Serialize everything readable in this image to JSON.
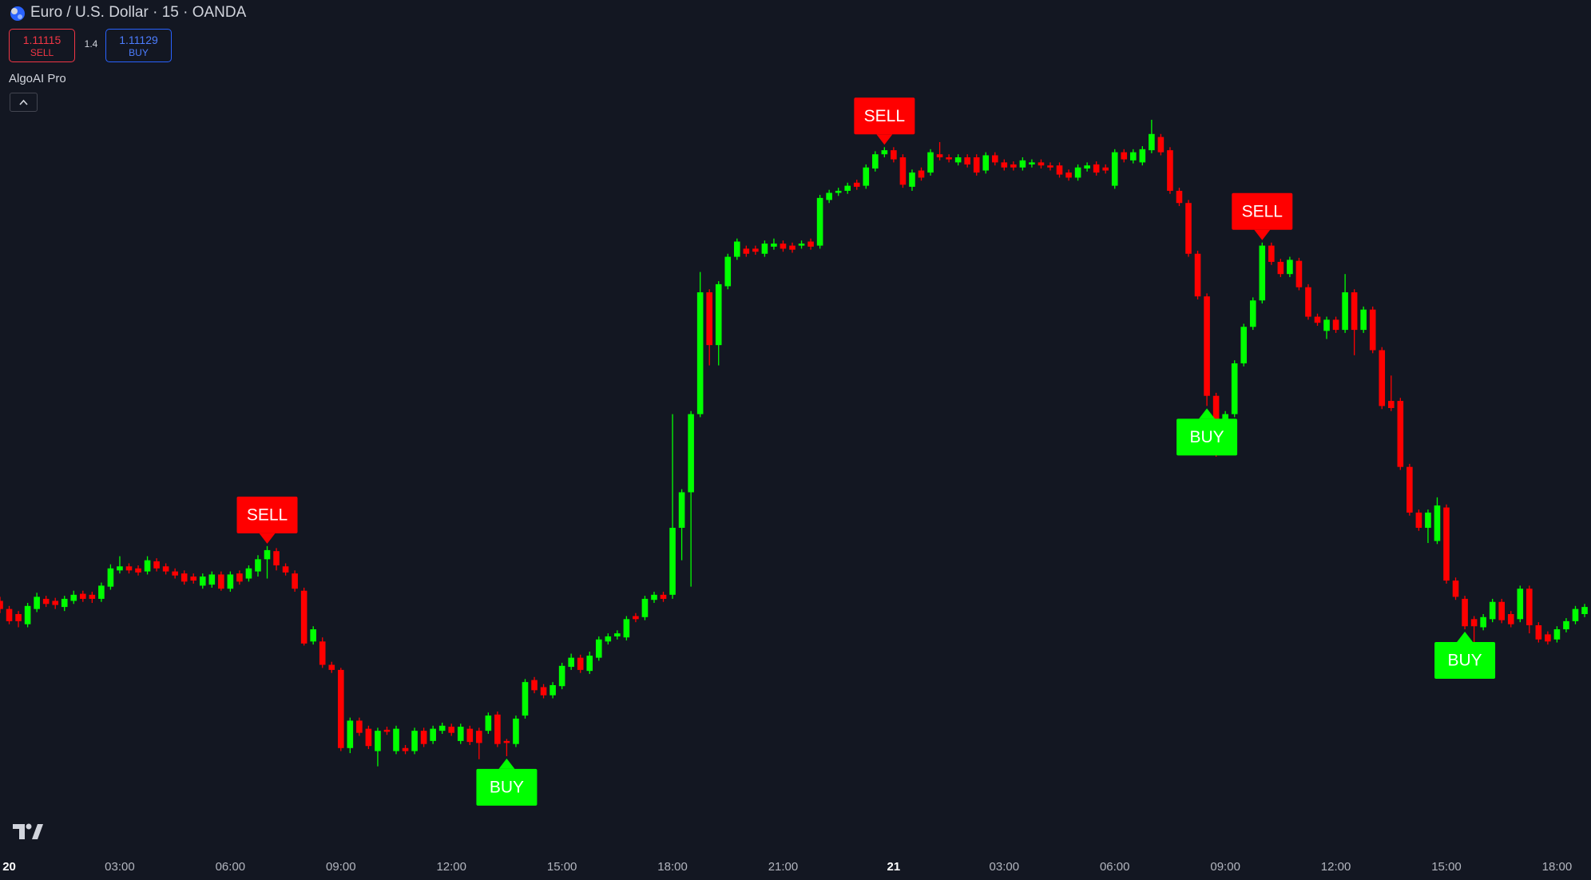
{
  "header": {
    "symbol": "Euro / U.S. Dollar · 15 · OANDA",
    "sell_price": "1.11115",
    "sell_label": "SELL",
    "spread": "1.4",
    "buy_price": "1.11129",
    "buy_label": "BUY",
    "indicator": "AlgoAI Pro"
  },
  "chart_data": {
    "type": "candlestick",
    "up_color": "#00ff00",
    "down_color": "#ff0000",
    "signal_styles": {
      "SELL": {
        "color": "#ff0000",
        "place": "above"
      },
      "BUY": {
        "color": "#00ff00",
        "place": "below"
      }
    },
    "ylim": [
      1.10933,
      1.118
    ],
    "categories": [
      null,
      "20",
      null,
      null,
      null,
      null,
      null,
      null,
      null,
      null,
      null,
      null,
      null,
      "03:00",
      null,
      null,
      null,
      null,
      null,
      null,
      null,
      null,
      null,
      null,
      null,
      "06:00",
      null,
      null,
      null,
      null,
      null,
      null,
      null,
      null,
      null,
      null,
      null,
      "09:00",
      null,
      null,
      null,
      null,
      null,
      null,
      null,
      null,
      null,
      null,
      null,
      "12:00",
      null,
      null,
      null,
      null,
      null,
      null,
      null,
      null,
      null,
      null,
      null,
      "15:00",
      null,
      null,
      null,
      null,
      null,
      null,
      null,
      null,
      null,
      null,
      null,
      "18:00",
      null,
      null,
      null,
      null,
      null,
      null,
      null,
      null,
      null,
      null,
      null,
      "21:00",
      null,
      null,
      null,
      null,
      null,
      null,
      null,
      null,
      null,
      null,
      null,
      "21",
      null,
      null,
      null,
      null,
      null,
      null,
      null,
      null,
      null,
      null,
      null,
      "03:00",
      null,
      null,
      null,
      null,
      null,
      null,
      null,
      null,
      null,
      null,
      null,
      "06:00",
      null,
      null,
      null,
      null,
      null,
      null,
      null,
      null,
      null,
      null,
      null,
      "09:00",
      null,
      null,
      null,
      null,
      null,
      null,
      null,
      null,
      null,
      null,
      null,
      "12:00",
      null,
      null,
      null,
      null,
      null,
      null,
      null,
      null,
      null,
      null,
      null,
      "15:00",
      null,
      null,
      null,
      null,
      null,
      null,
      null,
      null,
      null,
      null,
      null,
      "18:00",
      null,
      null,
      null
    ],
    "signals": [
      null,
      null,
      null,
      null,
      null,
      null,
      null,
      null,
      null,
      null,
      null,
      null,
      null,
      null,
      null,
      null,
      null,
      null,
      null,
      null,
      null,
      null,
      null,
      null,
      null,
      null,
      null,
      null,
      null,
      "SELL",
      null,
      null,
      null,
      null,
      null,
      null,
      null,
      null,
      null,
      null,
      null,
      null,
      null,
      null,
      null,
      null,
      null,
      null,
      null,
      null,
      null,
      null,
      null,
      null,
      null,
      "BUY",
      null,
      null,
      null,
      null,
      null,
      null,
      null,
      null,
      null,
      null,
      null,
      null,
      null,
      null,
      null,
      null,
      null,
      null,
      null,
      null,
      null,
      null,
      null,
      null,
      null,
      null,
      null,
      null,
      null,
      null,
      null,
      null,
      null,
      null,
      null,
      null,
      null,
      null,
      null,
      null,
      "SELL",
      null,
      null,
      null,
      null,
      null,
      null,
      null,
      null,
      null,
      null,
      null,
      null,
      null,
      null,
      null,
      null,
      null,
      null,
      null,
      null,
      null,
      null,
      null,
      null,
      null,
      null,
      null,
      null,
      null,
      null,
      null,
      null,
      null,
      null,
      "BUY",
      null,
      null,
      null,
      null,
      null,
      "SELL",
      null,
      null,
      null,
      null,
      null,
      null,
      null,
      null,
      null,
      null,
      null,
      null,
      null,
      null,
      null,
      null,
      null,
      null,
      null,
      null,
      null,
      "BUY",
      null,
      null,
      null,
      null,
      null,
      null,
      null,
      null,
      null,
      null,
      null,
      null
    ],
    "open": [
      1.11208,
      1.112,
      1.11195,
      1.11185,
      1.112,
      1.1121,
      1.11208,
      1.11202,
      1.11208,
      1.11215,
      1.11214,
      1.1121,
      1.11222,
      1.11238,
      1.11242,
      1.1124,
      1.11237,
      1.11247,
      1.11242,
      1.11237,
      1.11235,
      1.11232,
      1.11223,
      1.11224,
      1.11234,
      1.1122,
      1.11235,
      1.1123,
      1.11237,
      1.11249,
      1.11257,
      1.11242,
      1.11235,
      1.11218,
      1.11168,
      1.11168,
      1.11145,
      1.1114,
      1.11063,
      1.1109,
      1.11082,
      1.1106,
      1.11081,
      1.1106,
      1.11063,
      1.1106,
      1.1108,
      1.1107,
      1.1108,
      1.11084,
      1.1107,
      1.11082,
      1.1108,
      1.1108,
      1.11096,
      1.1107,
      1.11067,
      1.11095,
      1.1113,
      1.11123,
      1.11115,
      1.11124,
      1.11143,
      1.11152,
      1.11139,
      1.11152,
      1.11168,
      1.11173,
      1.11172,
      1.11193,
      1.11192,
      1.11209,
      1.11214,
      1.11214,
      1.1128,
      1.11315,
      1.11392,
      1.11512,
      1.1146,
      1.11518,
      1.11547,
      1.11555,
      1.11555,
      1.1155,
      1.11557,
      1.1156,
      1.11558,
      1.11558,
      1.11562,
      1.11558,
      1.11603,
      1.1161,
      1.11612,
      1.1162,
      1.11617,
      1.11634,
      1.11648,
      1.11652,
      1.11645,
      1.11616,
      1.11632,
      1.1163,
      1.11648,
      1.11645,
      1.1164,
      1.11645,
      1.11645,
      1.11632,
      1.11647,
      1.1164,
      1.11638,
      1.11635,
      1.11638,
      1.1164,
      1.11637,
      1.11637,
      1.1163,
      1.11625,
      1.11634,
      1.11638,
      1.11635,
      1.11617,
      1.1165,
      1.11642,
      1.1164,
      1.11652,
      1.11665,
      1.11652,
      1.11612,
      1.116,
      1.1155,
      1.11508,
      1.1141,
      1.11378,
      1.11392,
      1.11442,
      1.11478,
      1.11504,
      1.11558,
      1.11542,
      1.1153,
      1.11543,
      1.11517,
      1.11488,
      1.11474,
      1.11485,
      1.11475,
      1.11512,
      1.11475,
      1.11495,
      1.11455,
      1.11405,
      1.11405,
      1.1134,
      1.11295,
      1.1128,
      1.11267,
      1.113,
      1.11228,
      1.1121,
      1.1119,
      1.11182,
      1.1119,
      1.11207,
      1.11195,
      1.1119,
      1.1122,
      1.11184,
      1.11175,
      1.1117,
      1.1118,
      1.11188,
      1.11195
    ],
    "high": [
      1.11212,
      1.11203,
      1.11198,
      1.11206,
      1.11216,
      1.11213,
      1.11211,
      1.11213,
      1.11218,
      1.11218,
      1.11217,
      1.11226,
      1.11244,
      1.11252,
      1.11245,
      1.11243,
      1.11252,
      1.1125,
      1.11245,
      1.1124,
      1.11238,
      1.11235,
      1.11235,
      1.11237,
      1.11237,
      1.11237,
      1.11238,
      1.11243,
      1.11253,
      1.11262,
      1.1126,
      1.11245,
      1.11238,
      1.11221,
      1.11183,
      1.11172,
      1.11148,
      1.11142,
      1.11093,
      1.11093,
      1.11085,
      1.11083,
      1.11084,
      1.11085,
      1.11066,
      1.11083,
      1.11083,
      1.11085,
      1.11088,
      1.11087,
      1.11087,
      1.11085,
      1.11083,
      1.11098,
      1.11099,
      1.11072,
      1.11095,
      1.11131,
      1.11133,
      1.11126,
      1.11128,
      1.11147,
      1.11156,
      1.11155,
      1.11158,
      1.11173,
      1.11176,
      1.11179,
      1.11193,
      1.11196,
      1.11213,
      1.11217,
      1.11217,
      1.11392,
      1.11318,
      1.11395,
      1.11532,
      1.11515,
      1.11523,
      1.1155,
      1.11565,
      1.11558,
      1.11558,
      1.11563,
      1.11565,
      1.11563,
      1.11561,
      1.11563,
      1.11565,
      1.11608,
      1.11613,
      1.11615,
      1.1162,
      1.11623,
      1.11638,
      1.11651,
      1.11655,
      1.11655,
      1.11648,
      1.11633,
      1.11635,
      1.11653,
      1.1166,
      1.11648,
      1.11648,
      1.11648,
      1.11648,
      1.1165,
      1.1165,
      1.11643,
      1.11641,
      1.11645,
      1.11643,
      1.11643,
      1.1164,
      1.1164,
      1.11633,
      1.11638,
      1.1164,
      1.11641,
      1.11638,
      1.11653,
      1.11653,
      1.11653,
      1.11656,
      1.11682,
      1.11668,
      1.11655,
      1.11615,
      1.11603,
      1.11553,
      1.11511,
      1.11413,
      1.11395,
      1.11445,
      1.11481,
      1.11507,
      1.11561,
      1.11561,
      1.11545,
      1.11547,
      1.11546,
      1.1152,
      1.11491,
      1.11488,
      1.11488,
      1.1153,
      1.11515,
      1.11498,
      1.11498,
      1.11458,
      1.1143,
      1.11408,
      1.11343,
      1.11298,
      1.11298,
      1.1131,
      1.11303,
      1.11231,
      1.11213,
      1.11193,
      1.11195,
      1.1121,
      1.1121,
      1.11198,
      1.11223,
      1.11223,
      1.11187,
      1.11178,
      1.11183,
      1.11191,
      1.11203,
      1.11205
    ],
    "low": [
      1.11196,
      1.11185,
      1.11182,
      1.11182,
      1.11197,
      1.11202,
      1.112,
      1.11198,
      1.11205,
      1.11207,
      1.11206,
      1.11207,
      1.11219,
      1.11235,
      1.11235,
      1.11233,
      1.11234,
      1.11237,
      1.11234,
      1.1123,
      1.11224,
      1.11225,
      1.1122,
      1.11221,
      1.11218,
      1.11217,
      1.11224,
      1.11227,
      1.11232,
      1.1123,
      1.11238,
      1.11233,
      1.11217,
      1.11164,
      1.11165,
      1.11142,
      1.11137,
      1.1106,
      1.11058,
      1.11075,
      1.11062,
      1.11045,
      1.11076,
      1.11057,
      1.11057,
      1.11057,
      1.11064,
      1.11067,
      1.11077,
      1.11075,
      1.11067,
      1.11066,
      1.11052,
      1.11077,
      1.11064,
      1.11055,
      1.11064,
      1.11092,
      1.11117,
      1.11112,
      1.11112,
      1.11121,
      1.1114,
      1.11137,
      1.11136,
      1.11149,
      1.11165,
      1.1117,
      1.11169,
      1.11187,
      1.11189,
      1.11206,
      1.11207,
      1.1121,
      1.11248,
      1.11222,
      1.11389,
      1.1144,
      1.1144,
      1.11515,
      1.11544,
      1.11547,
      1.11549,
      1.11547,
      1.11554,
      1.11552,
      1.11551,
      1.11555,
      1.11554,
      1.11555,
      1.116,
      1.11607,
      1.11609,
      1.11613,
      1.11614,
      1.11631,
      1.11645,
      1.1164,
      1.11615,
      1.11612,
      1.11622,
      1.11627,
      1.11642,
      1.1164,
      1.11637,
      1.11635,
      1.11627,
      1.11629,
      1.11637,
      1.11632,
      1.11632,
      1.11632,
      1.11635,
      1.11634,
      1.11632,
      1.11625,
      1.11622,
      1.11622,
      1.11631,
      1.11627,
      1.11629,
      1.11614,
      1.1164,
      1.11639,
      1.11637,
      1.11649,
      1.11647,
      1.11609,
      1.11597,
      1.11547,
      1.11505,
      1.114,
      1.1135,
      1.11362,
      1.11389,
      1.11439,
      1.11475,
      1.11501,
      1.11539,
      1.11527,
      1.11527,
      1.11514,
      1.11485,
      1.11479,
      1.11466,
      1.11472,
      1.11472,
      1.1145,
      1.11472,
      1.11452,
      1.11397,
      1.11395,
      1.11337,
      1.11292,
      1.11277,
      1.11265,
      1.11264,
      1.11225,
      1.11209,
      1.1118,
      1.11165,
      1.11179,
      1.11187,
      1.11186,
      1.11182,
      1.11187,
      1.11176,
      1.11167,
      1.11165,
      1.11167,
      1.11177,
      1.11185,
      1.11192
    ],
    "close": [
      1.112,
      1.11188,
      1.11188,
      1.11203,
      1.11212,
      1.11205,
      1.11204,
      1.1121,
      1.11214,
      1.1121,
      1.1121,
      1.11223,
      1.1124,
      1.11242,
      1.11238,
      1.11236,
      1.11248,
      1.1124,
      1.11237,
      1.11233,
      1.11227,
      1.11228,
      1.11232,
      1.11234,
      1.1122,
      1.11234,
      1.11227,
      1.1124,
      1.11249,
      1.11258,
      1.11243,
      1.11236,
      1.1122,
      1.11166,
      1.1118,
      1.11145,
      1.1114,
      1.11063,
      1.1109,
      1.11078,
      1.11065,
      1.1108,
      1.11079,
      1.11082,
      1.1106,
      1.1108,
      1.11067,
      1.11082,
      1.11085,
      1.11078,
      1.11084,
      1.11069,
      1.11068,
      1.11095,
      1.11067,
      1.11068,
      1.11092,
      1.11128,
      1.1112,
      1.11115,
      1.11125,
      1.11144,
      1.11152,
      1.1114,
      1.11154,
      1.1117,
      1.11173,
      1.11176,
      1.1119,
      1.1119,
      1.1121,
      1.11214,
      1.1121,
      1.1128,
      1.11315,
      1.11392,
      1.11512,
      1.1146,
      1.1152,
      1.11547,
      1.11562,
      1.1155,
      1.11552,
      1.1156,
      1.1156,
      1.11555,
      1.11554,
      1.1156,
      1.11557,
      1.11605,
      1.1161,
      1.11612,
      1.11617,
      1.11616,
      1.11635,
      1.11648,
      1.11652,
      1.11643,
      1.11618,
      1.1163,
      1.11625,
      1.1165,
      1.11645,
      1.11643,
      1.11645,
      1.11638,
      1.1163,
      1.11647,
      1.1164,
      1.11635,
      1.11635,
      1.11642,
      1.1164,
      1.11637,
      1.11635,
      1.11628,
      1.11625,
      1.11635,
      1.11637,
      1.1163,
      1.11632,
      1.1165,
      1.11643,
      1.1165,
      1.11653,
      1.11668,
      1.1165,
      1.11612,
      1.116,
      1.1155,
      1.11508,
      1.1141,
      1.11378,
      1.11392,
      1.11442,
      1.11478,
      1.11504,
      1.11558,
      1.11542,
      1.1153,
      1.11544,
      1.11517,
      1.11488,
      1.11482,
      1.11485,
      1.11475,
      1.11512,
      1.11475,
      1.11495,
      1.11455,
      1.114,
      1.11398,
      1.1134,
      1.11295,
      1.1128,
      1.11295,
      1.11302,
      1.11228,
      1.11212,
      1.11183,
      1.11183,
      1.11192,
      1.11207,
      1.11189,
      1.11185,
      1.1122,
      1.11184,
      1.1117,
      1.11168,
      1.1118,
      1.11188,
      1.112,
      1.11202
    ]
  }
}
